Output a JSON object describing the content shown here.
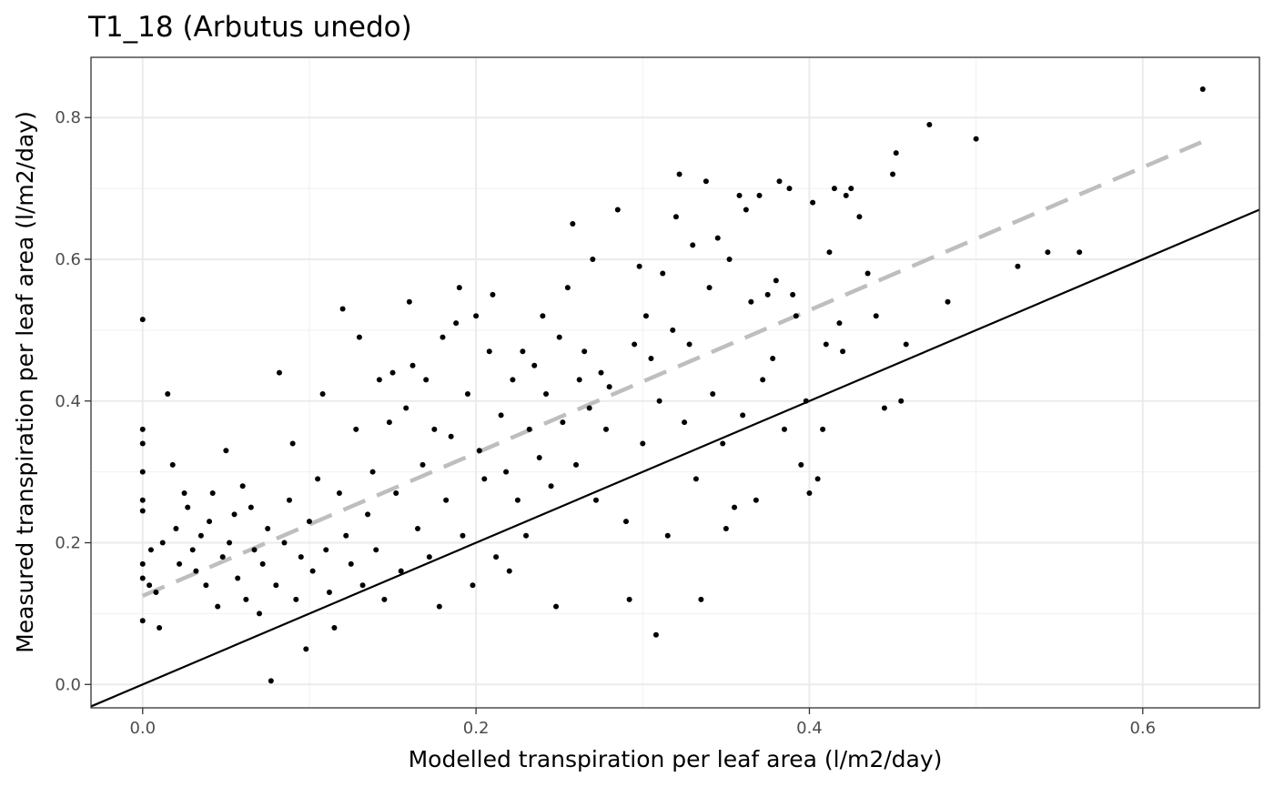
{
  "chart_data": {
    "type": "scatter",
    "title": "T1_18 (Arbutus unedo)",
    "xlabel": "Modelled transpiration per leaf area (l/m2/day)",
    "ylabel": "Measured transpiration per leaf area (l/m2/day)",
    "xlim": [
      -0.031,
      0.67
    ],
    "ylim": [
      -0.033,
      0.885
    ],
    "x_ticks": [
      0.0,
      0.2,
      0.4,
      0.6
    ],
    "x_tick_labels": [
      "0.0",
      "0.2",
      "0.4",
      "0.6"
    ],
    "y_ticks": [
      0.0,
      0.2,
      0.4,
      0.6,
      0.8
    ],
    "y_tick_labels": [
      "0.0",
      "0.2",
      "0.4",
      "0.6",
      "0.8"
    ],
    "grid": true,
    "point_color": "#000000",
    "identity_line": {
      "slope": 1,
      "intercept": 0,
      "color": "#000000",
      "style": "solid"
    },
    "fit_line": {
      "x": [
        0.0,
        0.635
      ],
      "y": [
        0.125,
        0.765
      ],
      "color": "#bebebe",
      "style": "dashed"
    },
    "points": [
      [
        0.0,
        0.515
      ],
      [
        0.0,
        0.36
      ],
      [
        0.0,
        0.34
      ],
      [
        0.0,
        0.3
      ],
      [
        0.0,
        0.26
      ],
      [
        0.0,
        0.245
      ],
      [
        0.0,
        0.17
      ],
      [
        0.0,
        0.15
      ],
      [
        0.0,
        0.09
      ],
      [
        0.004,
        0.14
      ],
      [
        0.005,
        0.19
      ],
      [
        0.008,
        0.13
      ],
      [
        0.01,
        0.08
      ],
      [
        0.012,
        0.2
      ],
      [
        0.015,
        0.41
      ],
      [
        0.018,
        0.31
      ],
      [
        0.02,
        0.22
      ],
      [
        0.022,
        0.17
      ],
      [
        0.025,
        0.27
      ],
      [
        0.027,
        0.25
      ],
      [
        0.03,
        0.19
      ],
      [
        0.032,
        0.16
      ],
      [
        0.035,
        0.21
      ],
      [
        0.038,
        0.14
      ],
      [
        0.04,
        0.23
      ],
      [
        0.042,
        0.27
      ],
      [
        0.045,
        0.11
      ],
      [
        0.048,
        0.18
      ],
      [
        0.05,
        0.33
      ],
      [
        0.052,
        0.2
      ],
      [
        0.055,
        0.24
      ],
      [
        0.057,
        0.15
      ],
      [
        0.06,
        0.28
      ],
      [
        0.062,
        0.12
      ],
      [
        0.065,
        0.25
      ],
      [
        0.067,
        0.19
      ],
      [
        0.07,
        0.1
      ],
      [
        0.072,
        0.17
      ],
      [
        0.075,
        0.22
      ],
      [
        0.077,
        0.005
      ],
      [
        0.08,
        0.14
      ],
      [
        0.082,
        0.44
      ],
      [
        0.085,
        0.2
      ],
      [
        0.088,
        0.26
      ],
      [
        0.09,
        0.34
      ],
      [
        0.092,
        0.12
      ],
      [
        0.095,
        0.18
      ],
      [
        0.098,
        0.05
      ],
      [
        0.1,
        0.23
      ],
      [
        0.102,
        0.16
      ],
      [
        0.105,
        0.29
      ],
      [
        0.108,
        0.41
      ],
      [
        0.11,
        0.19
      ],
      [
        0.112,
        0.13
      ],
      [
        0.115,
        0.08
      ],
      [
        0.118,
        0.27
      ],
      [
        0.12,
        0.53
      ],
      [
        0.122,
        0.21
      ],
      [
        0.125,
        0.17
      ],
      [
        0.128,
        0.36
      ],
      [
        0.13,
        0.49
      ],
      [
        0.132,
        0.14
      ],
      [
        0.135,
        0.24
      ],
      [
        0.138,
        0.3
      ],
      [
        0.14,
        0.19
      ],
      [
        0.142,
        0.43
      ],
      [
        0.145,
        0.12
      ],
      [
        0.148,
        0.37
      ],
      [
        0.15,
        0.44
      ],
      [
        0.152,
        0.27
      ],
      [
        0.155,
        0.16
      ],
      [
        0.158,
        0.39
      ],
      [
        0.16,
        0.54
      ],
      [
        0.162,
        0.45
      ],
      [
        0.165,
        0.22
      ],
      [
        0.168,
        0.31
      ],
      [
        0.17,
        0.43
      ],
      [
        0.172,
        0.18
      ],
      [
        0.175,
        0.36
      ],
      [
        0.178,
        0.11
      ],
      [
        0.18,
        0.49
      ],
      [
        0.182,
        0.26
      ],
      [
        0.185,
        0.35
      ],
      [
        0.188,
        0.51
      ],
      [
        0.19,
        0.56
      ],
      [
        0.192,
        0.21
      ],
      [
        0.195,
        0.41
      ],
      [
        0.198,
        0.14
      ],
      [
        0.2,
        0.52
      ],
      [
        0.202,
        0.33
      ],
      [
        0.205,
        0.29
      ],
      [
        0.208,
        0.47
      ],
      [
        0.21,
        0.55
      ],
      [
        0.212,
        0.18
      ],
      [
        0.215,
        0.38
      ],
      [
        0.218,
        0.3
      ],
      [
        0.22,
        0.16
      ],
      [
        0.222,
        0.43
      ],
      [
        0.225,
        0.26
      ],
      [
        0.228,
        0.47
      ],
      [
        0.23,
        0.21
      ],
      [
        0.232,
        0.36
      ],
      [
        0.235,
        0.45
      ],
      [
        0.238,
        0.32
      ],
      [
        0.24,
        0.52
      ],
      [
        0.242,
        0.41
      ],
      [
        0.245,
        0.28
      ],
      [
        0.248,
        0.11
      ],
      [
        0.25,
        0.49
      ],
      [
        0.252,
        0.37
      ],
      [
        0.255,
        0.56
      ],
      [
        0.258,
        0.65
      ],
      [
        0.26,
        0.31
      ],
      [
        0.262,
        0.43
      ],
      [
        0.265,
        0.47
      ],
      [
        0.268,
        0.39
      ],
      [
        0.27,
        0.6
      ],
      [
        0.272,
        0.26
      ],
      [
        0.275,
        0.44
      ],
      [
        0.278,
        0.36
      ],
      [
        0.28,
        0.42
      ],
      [
        0.285,
        0.67
      ],
      [
        0.29,
        0.23
      ],
      [
        0.292,
        0.12
      ],
      [
        0.295,
        0.48
      ],
      [
        0.298,
        0.59
      ],
      [
        0.3,
        0.34
      ],
      [
        0.302,
        0.52
      ],
      [
        0.305,
        0.46
      ],
      [
        0.308,
        0.07
      ],
      [
        0.31,
        0.4
      ],
      [
        0.312,
        0.58
      ],
      [
        0.315,
        0.21
      ],
      [
        0.318,
        0.5
      ],
      [
        0.32,
        0.66
      ],
      [
        0.322,
        0.72
      ],
      [
        0.325,
        0.37
      ],
      [
        0.328,
        0.48
      ],
      [
        0.33,
        0.62
      ],
      [
        0.332,
        0.29
      ],
      [
        0.335,
        0.12
      ],
      [
        0.338,
        0.71
      ],
      [
        0.34,
        0.56
      ],
      [
        0.342,
        0.41
      ],
      [
        0.345,
        0.63
      ],
      [
        0.348,
        0.34
      ],
      [
        0.35,
        0.22
      ],
      [
        0.352,
        0.6
      ],
      [
        0.355,
        0.25
      ],
      [
        0.358,
        0.69
      ],
      [
        0.36,
        0.38
      ],
      [
        0.362,
        0.67
      ],
      [
        0.365,
        0.54
      ],
      [
        0.368,
        0.26
      ],
      [
        0.37,
        0.69
      ],
      [
        0.372,
        0.43
      ],
      [
        0.375,
        0.55
      ],
      [
        0.378,
        0.46
      ],
      [
        0.38,
        0.57
      ],
      [
        0.382,
        0.71
      ],
      [
        0.385,
        0.36
      ],
      [
        0.388,
        0.7
      ],
      [
        0.39,
        0.55
      ],
      [
        0.392,
        0.52
      ],
      [
        0.395,
        0.31
      ],
      [
        0.398,
        0.4
      ],
      [
        0.4,
        0.27
      ],
      [
        0.402,
        0.68
      ],
      [
        0.405,
        0.29
      ],
      [
        0.408,
        0.36
      ],
      [
        0.41,
        0.48
      ],
      [
        0.412,
        0.61
      ],
      [
        0.415,
        0.7
      ],
      [
        0.418,
        0.51
      ],
      [
        0.42,
        0.47
      ],
      [
        0.422,
        0.69
      ],
      [
        0.425,
        0.7
      ],
      [
        0.43,
        0.66
      ],
      [
        0.435,
        0.58
      ],
      [
        0.44,
        0.52
      ],
      [
        0.445,
        0.39
      ],
      [
        0.45,
        0.72
      ],
      [
        0.452,
        0.75
      ],
      [
        0.455,
        0.4
      ],
      [
        0.458,
        0.48
      ],
      [
        0.472,
        0.79
      ],
      [
        0.483,
        0.54
      ],
      [
        0.5,
        0.77
      ],
      [
        0.525,
        0.59
      ],
      [
        0.543,
        0.61
      ],
      [
        0.562,
        0.61
      ],
      [
        0.636,
        0.84
      ]
    ]
  }
}
